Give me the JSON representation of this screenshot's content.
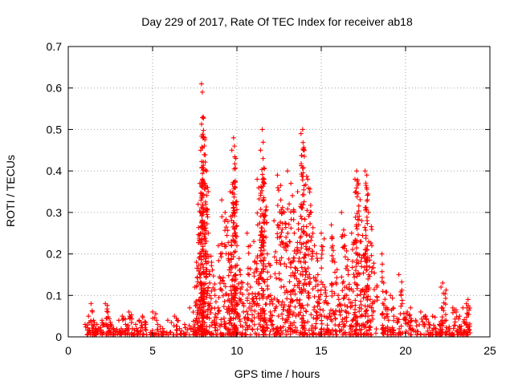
{
  "chart_data": {
    "type": "scatter",
    "title": "Day 229 of 2017, Rate Of TEC Index for receiver ab18",
    "xlabel": "GPS time / hours",
    "ylabel": "ROTI / TECUs",
    "xlim": [
      0,
      25
    ],
    "ylim": [
      0,
      0.7
    ],
    "x_ticks": [
      0,
      5,
      10,
      15,
      20,
      25
    ],
    "x_tick_labels": [
      "0",
      "5",
      "10",
      "15",
      "20",
      "25"
    ],
    "y_ticks": [
      0,
      0.1,
      0.2,
      0.3,
      0.4,
      0.5,
      0.6,
      0.7
    ],
    "y_tick_labels": [
      "0",
      "0.1",
      "0.2",
      "0.3",
      "0.4",
      "0.5",
      "0.6",
      "0.7"
    ],
    "grid": true,
    "marker": "plus",
    "color": "#ff0000",
    "series": [
      {
        "name": "ROTI",
        "x": [
          1.0,
          1.2,
          1.35,
          1.5,
          1.6,
          1.7,
          2.0,
          2.2,
          2.35,
          2.5,
          2.7,
          3.0,
          3.2,
          3.4,
          3.6,
          3.8,
          4.0,
          4.2,
          4.4,
          4.6,
          5.0,
          5.3,
          5.6,
          5.9,
          6.3,
          6.6,
          6.9,
          7.2,
          7.5,
          7.6,
          7.7,
          7.8,
          7.85,
          7.9,
          7.95,
          8.0,
          8.1,
          8.2,
          8.3,
          8.5,
          8.7,
          8.9,
          9.1,
          9.3,
          9.5,
          9.6,
          9.7,
          9.8,
          9.85,
          9.9,
          10.0,
          10.2,
          10.4,
          10.6,
          10.8,
          11.0,
          11.2,
          11.4,
          11.5,
          11.55,
          11.6,
          11.8,
          12.0,
          12.2,
          12.4,
          12.6,
          12.8,
          13.0,
          13.2,
          13.4,
          13.6,
          13.8,
          13.9,
          14.0,
          14.2,
          14.4,
          14.6,
          14.8,
          15.0,
          15.2,
          15.4,
          15.6,
          15.8,
          16.0,
          16.2,
          16.4,
          16.6,
          16.8,
          17.0,
          17.1,
          17.2,
          17.4,
          17.6,
          17.7,
          17.8,
          18.0,
          18.6,
          18.7,
          18.9,
          19.1,
          19.3,
          19.6,
          19.8,
          20.1,
          20.3,
          20.6,
          20.9,
          21.2,
          21.4,
          21.6,
          21.8,
          22.0,
          22.1,
          22.2,
          22.4,
          22.6,
          22.8,
          23.0,
          23.2,
          23.4,
          23.6,
          23.7
        ],
        "y": [
          0.03,
          0.05,
          0.08,
          0.04,
          0.02,
          0.03,
          0.04,
          0.08,
          0.06,
          0.03,
          0.02,
          0.04,
          0.05,
          0.03,
          0.06,
          0.02,
          0.03,
          0.04,
          0.05,
          0.03,
          0.06,
          0.03,
          0.02,
          0.04,
          0.05,
          0.02,
          0.03,
          0.07,
          0.12,
          0.18,
          0.32,
          0.37,
          0.45,
          0.61,
          0.59,
          0.53,
          0.48,
          0.4,
          0.25,
          0.18,
          0.1,
          0.22,
          0.33,
          0.3,
          0.2,
          0.35,
          0.45,
          0.48,
          0.46,
          0.36,
          0.22,
          0.15,
          0.08,
          0.25,
          0.12,
          0.23,
          0.38,
          0.45,
          0.5,
          0.43,
          0.33,
          0.2,
          0.1,
          0.28,
          0.39,
          0.33,
          0.3,
          0.4,
          0.37,
          0.25,
          0.35,
          0.49,
          0.5,
          0.45,
          0.38,
          0.3,
          0.22,
          0.15,
          0.25,
          0.12,
          0.08,
          0.27,
          0.18,
          0.1,
          0.3,
          0.22,
          0.15,
          0.25,
          0.38,
          0.4,
          0.37,
          0.28,
          0.4,
          0.39,
          0.3,
          0.22,
          0.2,
          0.13,
          0.07,
          0.1,
          0.05,
          0.15,
          0.08,
          0.06,
          0.07,
          0.04,
          0.06,
          0.05,
          0.03,
          0.05,
          0.02,
          0.03,
          0.12,
          0.13,
          0.04,
          0.02,
          0.07,
          0.06,
          0.05,
          0.07,
          0.08,
          0.09
        ]
      }
    ]
  }
}
